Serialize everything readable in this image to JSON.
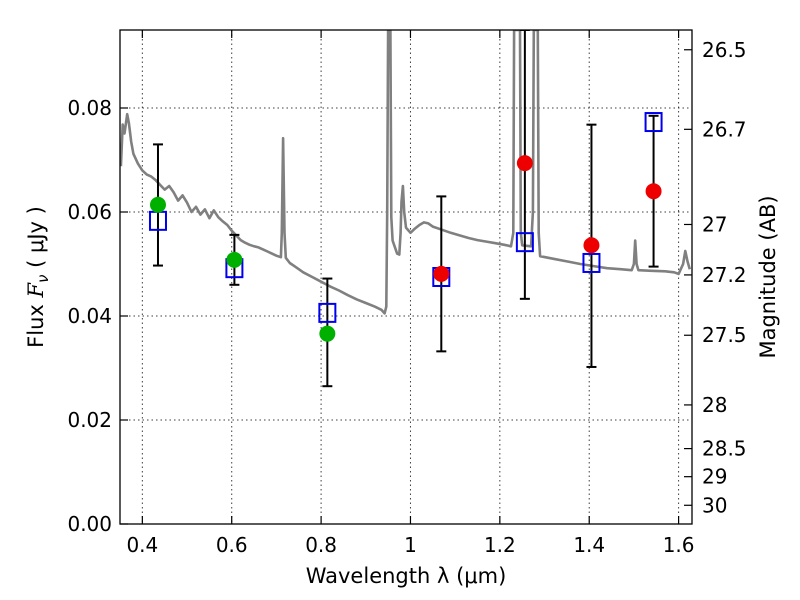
{
  "chart_data": {
    "type": "scatter",
    "xlabel": "Wavelength  λ (μm)",
    "ylabel_left_prefix": "Flux  ",
    "ylabel_left_symbol": "F",
    "ylabel_left_subscript": "ν",
    "ylabel_left_unit": "  ( μJy )",
    "ylabel_right": "Magnitude (AB)",
    "xlim": [
      0.35,
      1.63
    ],
    "ylim": [
      0.0,
      0.095
    ],
    "grid": true,
    "x_ticks": [
      0.4,
      0.6,
      0.8,
      1.0,
      1.2,
      1.4,
      1.6
    ],
    "x_tick_labels": [
      "0.4",
      "0.6",
      "0.8",
      "1",
      "1.2",
      "1.4",
      "1.6"
    ],
    "y_ticks": [
      0.0,
      0.02,
      0.04,
      0.06,
      0.08
    ],
    "y_tick_labels": [
      "0.00",
      "0.02",
      "0.04",
      "0.06",
      "0.08"
    ],
    "right_axis_ticks": [
      {
        "label": "26.5",
        "flux": 0.0912
      },
      {
        "label": "26.7",
        "flux": 0.0759
      },
      {
        "label": "27",
        "flux": 0.0576
      },
      {
        "label": "27.2",
        "flux": 0.0479
      },
      {
        "label": "27.5",
        "flux": 0.0363
      },
      {
        "label": "28",
        "flux": 0.0229
      },
      {
        "label": "28.5",
        "flux": 0.0145
      },
      {
        "label": "29",
        "flux": 0.0091
      },
      {
        "label": "30",
        "flux": 0.0036
      }
    ],
    "series": [
      {
        "kind": "template-spectrum",
        "color": "#808080",
        "points": [
          [
            0.352,
            0.0688
          ],
          [
            0.356,
            0.0768
          ],
          [
            0.36,
            0.0751
          ],
          [
            0.366,
            0.0788
          ],
          [
            0.37,
            0.0771
          ],
          [
            0.375,
            0.0735
          ],
          [
            0.38,
            0.0712
          ],
          [
            0.39,
            0.0693
          ],
          [
            0.4,
            0.068
          ],
          [
            0.41,
            0.0672
          ],
          [
            0.42,
            0.0668
          ],
          [
            0.43,
            0.0661
          ],
          [
            0.44,
            0.0652
          ],
          [
            0.45,
            0.0643
          ],
          [
            0.46,
            0.065
          ],
          [
            0.47,
            0.0638
          ],
          [
            0.48,
            0.0622
          ],
          [
            0.49,
            0.0632
          ],
          [
            0.5,
            0.0618
          ],
          [
            0.51,
            0.06
          ],
          [
            0.52,
            0.061
          ],
          [
            0.53,
            0.0595
          ],
          [
            0.54,
            0.0605
          ],
          [
            0.55,
            0.0588
          ],
          [
            0.56,
            0.0603
          ],
          [
            0.57,
            0.059
          ],
          [
            0.58,
            0.0582
          ],
          [
            0.59,
            0.0575
          ],
          [
            0.6,
            0.0564
          ],
          [
            0.61,
            0.0555
          ],
          [
            0.62,
            0.0546
          ],
          [
            0.63,
            0.0541
          ],
          [
            0.64,
            0.0537
          ],
          [
            0.65,
            0.0534
          ],
          [
            0.66,
            0.0532
          ],
          [
            0.67,
            0.0528
          ],
          [
            0.68,
            0.0524
          ],
          [
            0.69,
            0.052
          ],
          [
            0.7,
            0.0516
          ],
          [
            0.71,
            0.0513
          ],
          [
            0.712,
            0.056
          ],
          [
            0.715,
            0.0742
          ],
          [
            0.718,
            0.056
          ],
          [
            0.721,
            0.0512
          ],
          [
            0.73,
            0.0502
          ],
          [
            0.74,
            0.0496
          ],
          [
            0.75,
            0.049
          ],
          [
            0.76,
            0.0484
          ],
          [
            0.78,
            0.0475
          ],
          [
            0.8,
            0.0466
          ],
          [
            0.82,
            0.0457
          ],
          [
            0.84,
            0.0449
          ],
          [
            0.86,
            0.044
          ],
          [
            0.88,
            0.0432
          ],
          [
            0.9,
            0.0425
          ],
          [
            0.92,
            0.0418
          ],
          [
            0.935,
            0.0412
          ],
          [
            0.942,
            0.0405
          ],
          [
            0.946,
            0.0418
          ],
          [
            0.948,
            0.06
          ],
          [
            0.95,
            0.095
          ],
          [
            0.955,
            0.095
          ],
          [
            0.957,
            0.059
          ],
          [
            0.96,
            0.0545
          ],
          [
            0.97,
            0.052
          ],
          [
            0.975,
            0.0518
          ],
          [
            0.978,
            0.056
          ],
          [
            0.98,
            0.062
          ],
          [
            0.983,
            0.065
          ],
          [
            0.986,
            0.06
          ],
          [
            0.99,
            0.057
          ],
          [
            1.0,
            0.056
          ],
          [
            1.01,
            0.0568
          ],
          [
            1.02,
            0.0575
          ],
          [
            1.03,
            0.058
          ],
          [
            1.04,
            0.0578
          ],
          [
            1.05,
            0.0572
          ],
          [
            1.07,
            0.0566
          ],
          [
            1.09,
            0.056
          ],
          [
            1.11,
            0.0555
          ],
          [
            1.13,
            0.055
          ],
          [
            1.15,
            0.0546
          ],
          [
            1.17,
            0.0543
          ],
          [
            1.19,
            0.054
          ],
          [
            1.21,
            0.0537
          ],
          [
            1.225,
            0.0534
          ],
          [
            1.23,
            0.056
          ],
          [
            1.232,
            0.095
          ],
          [
            1.245,
            0.095
          ],
          [
            1.247,
            0.056
          ],
          [
            1.25,
            0.0536
          ],
          [
            1.27,
            0.0534
          ],
          [
            1.274,
            0.06
          ],
          [
            1.276,
            0.095
          ],
          [
            1.285,
            0.095
          ],
          [
            1.287,
            0.056
          ],
          [
            1.29,
            0.0515
          ],
          [
            1.32,
            0.051
          ],
          [
            1.35,
            0.0505
          ],
          [
            1.38,
            0.05
          ],
          [
            1.41,
            0.0496
          ],
          [
            1.44,
            0.0492
          ],
          [
            1.47,
            0.049
          ],
          [
            1.495,
            0.0488
          ],
          [
            1.5,
            0.05
          ],
          [
            1.503,
            0.0545
          ],
          [
            1.506,
            0.05
          ],
          [
            1.51,
            0.0488
          ],
          [
            1.54,
            0.0487
          ],
          [
            1.57,
            0.0486
          ],
          [
            1.59,
            0.0484
          ],
          [
            1.6,
            0.0481
          ],
          [
            1.61,
            0.05
          ],
          [
            1.615,
            0.0525
          ],
          [
            1.62,
            0.0505
          ],
          [
            1.625,
            0.049
          ]
        ]
      },
      {
        "kind": "observed-flux-green",
        "color": "#00b000",
        "points": [
          {
            "x": 0.435,
            "y": 0.0614,
            "err_low": 0.0497,
            "err_high": 0.073
          },
          {
            "x": 0.606,
            "y": 0.0508,
            "err_low": 0.046,
            "err_high": 0.0556
          },
          {
            "x": 0.814,
            "y": 0.0366,
            "err_low": 0.0265,
            "err_high": 0.0472
          }
        ]
      },
      {
        "kind": "observed-flux-red",
        "color": "#ee0000",
        "points": [
          {
            "x": 1.069,
            "y": 0.0481,
            "err_low": 0.0332,
            "err_high": 0.063
          },
          {
            "x": 1.256,
            "y": 0.0694,
            "err_low": 0.0433,
            "err_high": 0.095
          },
          {
            "x": 1.405,
            "y": 0.0536,
            "err_low": 0.0302,
            "err_high": 0.0768
          },
          {
            "x": 1.544,
            "y": 0.064,
            "err_low": 0.0495,
            "err_high": 0.0785
          }
        ]
      },
      {
        "kind": "model-flux",
        "color": "#0000ee",
        "points": [
          {
            "x": 0.435,
            "y": 0.0583
          },
          {
            "x": 0.606,
            "y": 0.0492
          },
          {
            "x": 0.814,
            "y": 0.0406
          },
          {
            "x": 1.069,
            "y": 0.0475
          },
          {
            "x": 1.256,
            "y": 0.0542
          },
          {
            "x": 1.405,
            "y": 0.0502
          },
          {
            "x": 1.544,
            "y": 0.0773
          }
        ]
      }
    ]
  }
}
